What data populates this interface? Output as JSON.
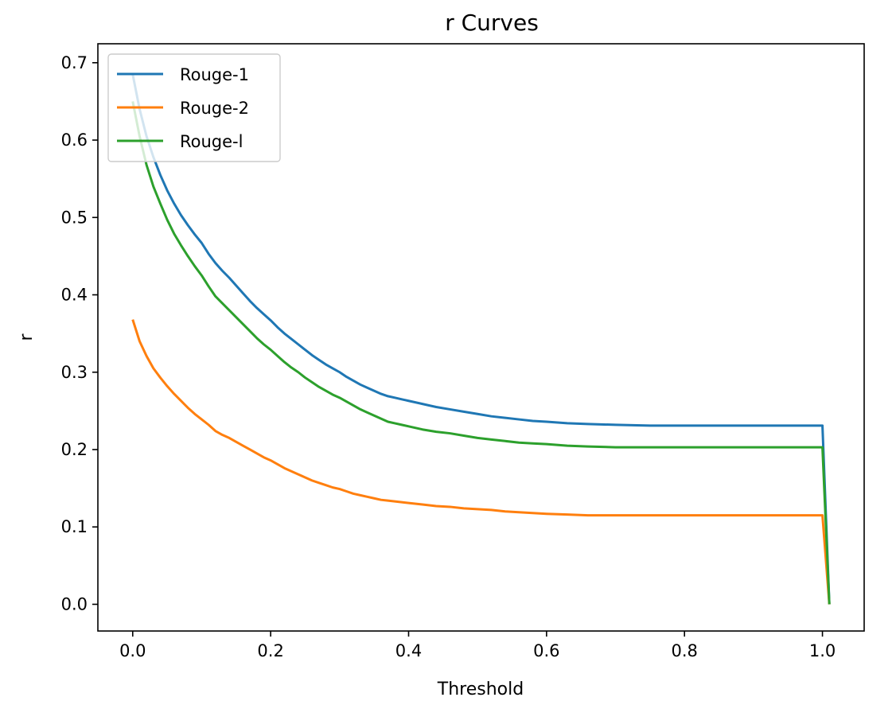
{
  "chart_data": {
    "type": "line",
    "title": "r Curves",
    "xlabel": "Threshold",
    "ylabel": "r",
    "xlim": [
      -0.0505,
      1.0605
    ],
    "ylim": [
      -0.0345,
      0.7245
    ],
    "xticks": [
      0.0,
      0.2,
      0.4,
      0.6,
      0.8,
      1.0
    ],
    "xtick_labels": [
      "0.0",
      "0.2",
      "0.4",
      "0.6",
      "0.8",
      "1.0"
    ],
    "yticks": [
      0.0,
      0.1,
      0.2,
      0.3,
      0.4,
      0.5,
      0.6,
      0.7
    ],
    "ytick_labels": [
      "0.0",
      "0.1",
      "0.2",
      "0.3",
      "0.4",
      "0.5",
      "0.6",
      "0.7"
    ],
    "grid": false,
    "legend_position": "top-left",
    "series": [
      {
        "name": "Rouge-1",
        "color": "#1f77b4",
        "x": [
          0.0,
          0.01,
          0.02,
          0.03,
          0.04,
          0.05,
          0.06,
          0.07,
          0.08,
          0.09,
          0.1,
          0.11,
          0.12,
          0.13,
          0.14,
          0.15,
          0.16,
          0.17,
          0.18,
          0.19,
          0.2,
          0.21,
          0.22,
          0.23,
          0.24,
          0.25,
          0.26,
          0.27,
          0.28,
          0.29,
          0.3,
          0.31,
          0.32,
          0.33,
          0.34,
          0.35,
          0.36,
          0.37,
          0.38,
          0.39,
          0.4,
          0.42,
          0.44,
          0.46,
          0.48,
          0.5,
          0.52,
          0.54,
          0.56,
          0.58,
          0.6,
          0.63,
          0.66,
          0.7,
          0.75,
          0.8,
          0.85,
          0.9,
          0.95,
          1.0,
          1.01
        ],
        "y": [
          0.685,
          0.64,
          0.605,
          0.578,
          0.555,
          0.535,
          0.518,
          0.503,
          0.49,
          0.478,
          0.467,
          0.453,
          0.441,
          0.431,
          0.422,
          0.412,
          0.402,
          0.392,
          0.383,
          0.375,
          0.367,
          0.358,
          0.35,
          0.343,
          0.336,
          0.329,
          0.322,
          0.316,
          0.31,
          0.305,
          0.3,
          0.294,
          0.289,
          0.284,
          0.28,
          0.276,
          0.272,
          0.269,
          0.267,
          0.265,
          0.263,
          0.259,
          0.255,
          0.252,
          0.249,
          0.246,
          0.243,
          0.241,
          0.239,
          0.237,
          0.236,
          0.234,
          0.233,
          0.232,
          0.231,
          0.231,
          0.231,
          0.231,
          0.231,
          0.231,
          0.0
        ]
      },
      {
        "name": "Rouge-2",
        "color": "#ff7f0e",
        "x": [
          0.0,
          0.01,
          0.02,
          0.03,
          0.04,
          0.05,
          0.06,
          0.07,
          0.08,
          0.09,
          0.1,
          0.11,
          0.12,
          0.13,
          0.14,
          0.15,
          0.16,
          0.17,
          0.18,
          0.19,
          0.2,
          0.21,
          0.22,
          0.23,
          0.24,
          0.25,
          0.26,
          0.27,
          0.28,
          0.29,
          0.3,
          0.31,
          0.32,
          0.33,
          0.34,
          0.35,
          0.36,
          0.37,
          0.38,
          0.39,
          0.4,
          0.42,
          0.44,
          0.46,
          0.48,
          0.5,
          0.52,
          0.54,
          0.56,
          0.58,
          0.6,
          0.63,
          0.66,
          0.7,
          0.75,
          0.8,
          0.85,
          0.9,
          0.95,
          1.0,
          1.01
        ],
        "y": [
          0.368,
          0.34,
          0.321,
          0.305,
          0.293,
          0.282,
          0.272,
          0.263,
          0.254,
          0.246,
          0.239,
          0.232,
          0.224,
          0.219,
          0.215,
          0.21,
          0.205,
          0.2,
          0.195,
          0.19,
          0.186,
          0.181,
          0.176,
          0.172,
          0.168,
          0.164,
          0.16,
          0.157,
          0.154,
          0.151,
          0.149,
          0.146,
          0.143,
          0.141,
          0.139,
          0.137,
          0.135,
          0.134,
          0.133,
          0.132,
          0.131,
          0.129,
          0.127,
          0.126,
          0.124,
          0.123,
          0.122,
          0.12,
          0.119,
          0.118,
          0.117,
          0.116,
          0.115,
          0.115,
          0.115,
          0.115,
          0.115,
          0.115,
          0.115,
          0.115,
          0.0
        ]
      },
      {
        "name": "Rouge-l",
        "color": "#2ca02c",
        "x": [
          0.0,
          0.01,
          0.02,
          0.03,
          0.04,
          0.05,
          0.06,
          0.07,
          0.08,
          0.09,
          0.1,
          0.11,
          0.12,
          0.13,
          0.14,
          0.15,
          0.16,
          0.17,
          0.18,
          0.19,
          0.2,
          0.21,
          0.22,
          0.23,
          0.24,
          0.25,
          0.26,
          0.27,
          0.28,
          0.29,
          0.3,
          0.31,
          0.32,
          0.33,
          0.34,
          0.35,
          0.36,
          0.37,
          0.38,
          0.39,
          0.4,
          0.42,
          0.44,
          0.46,
          0.48,
          0.5,
          0.52,
          0.54,
          0.56,
          0.58,
          0.6,
          0.63,
          0.66,
          0.7,
          0.75,
          0.8,
          0.85,
          0.9,
          0.95,
          1.0,
          1.01
        ],
        "y": [
          0.65,
          0.605,
          0.568,
          0.54,
          0.518,
          0.497,
          0.479,
          0.464,
          0.45,
          0.437,
          0.425,
          0.411,
          0.398,
          0.389,
          0.38,
          0.371,
          0.362,
          0.353,
          0.344,
          0.336,
          0.329,
          0.321,
          0.313,
          0.306,
          0.3,
          0.293,
          0.287,
          0.281,
          0.276,
          0.271,
          0.267,
          0.262,
          0.257,
          0.252,
          0.248,
          0.244,
          0.24,
          0.236,
          0.234,
          0.232,
          0.23,
          0.226,
          0.223,
          0.221,
          0.218,
          0.215,
          0.213,
          0.211,
          0.209,
          0.208,
          0.207,
          0.205,
          0.204,
          0.203,
          0.203,
          0.203,
          0.203,
          0.203,
          0.203,
          0.203,
          0.0
        ]
      }
    ]
  }
}
